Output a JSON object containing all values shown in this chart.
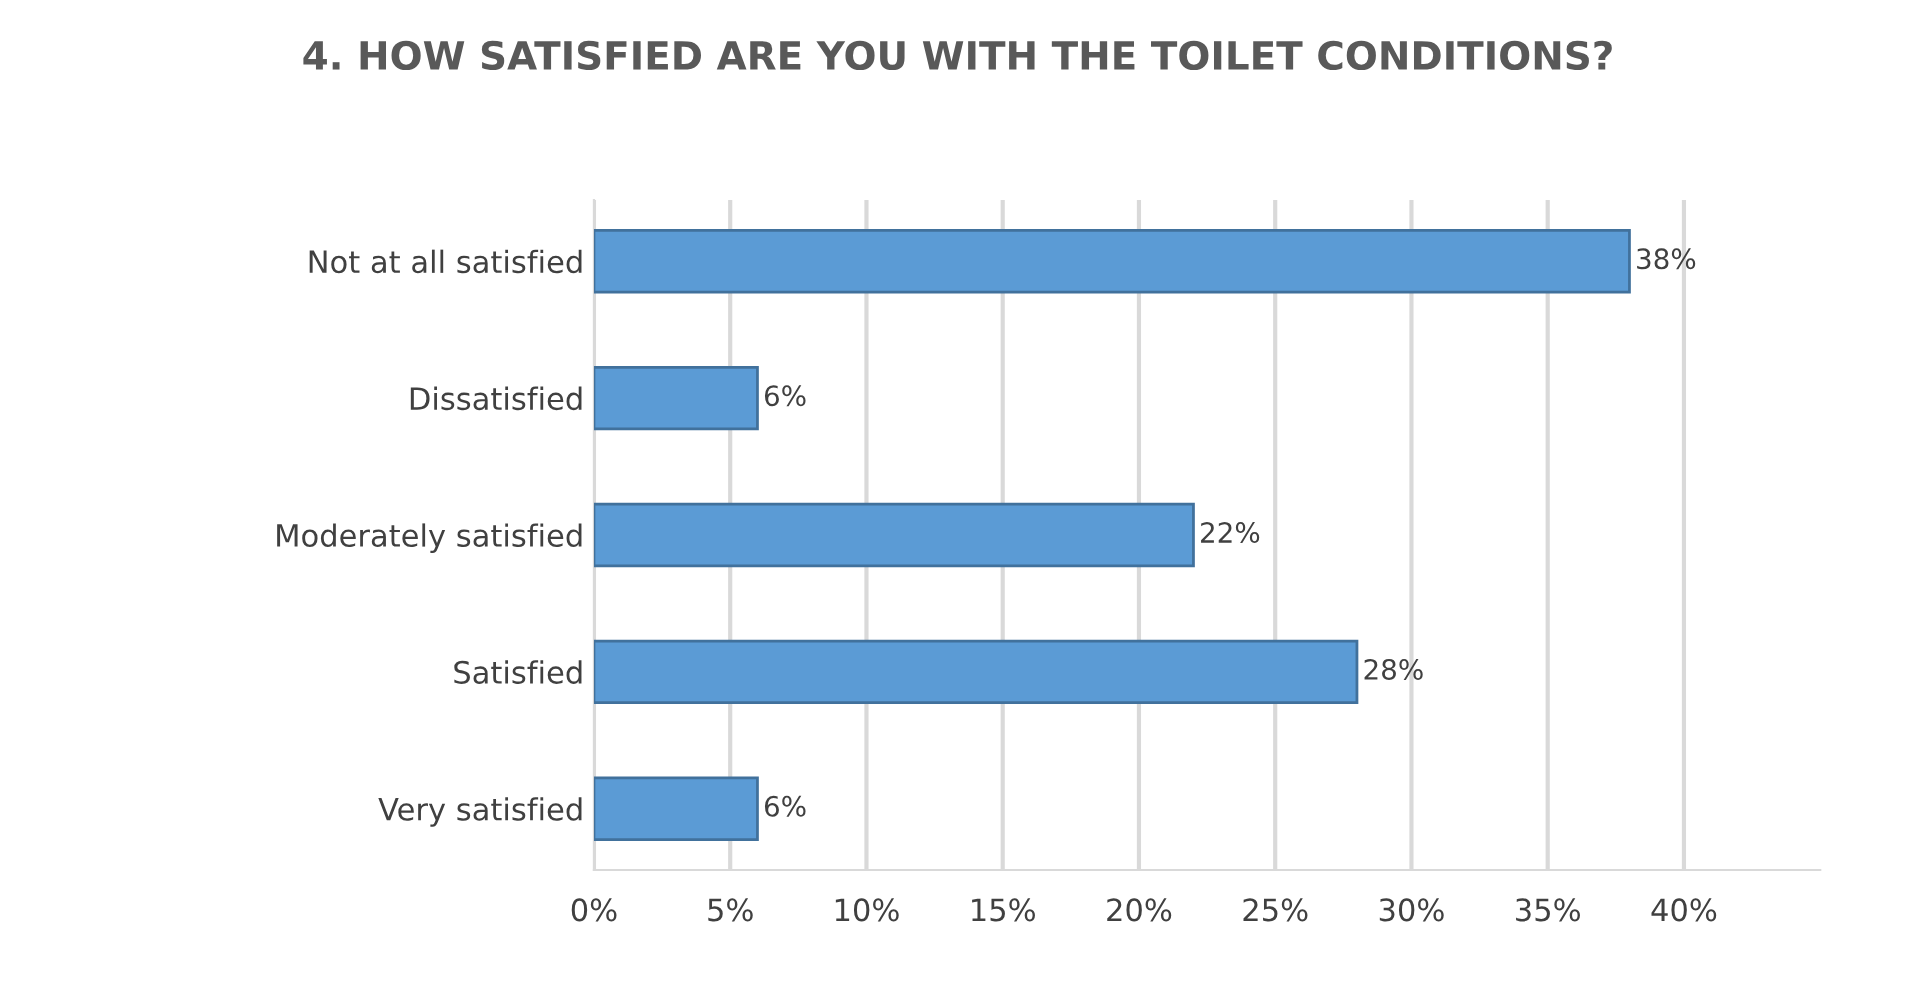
{
  "chart_data": {
    "type": "bar",
    "orientation": "horizontal",
    "title": "4. HOW SATISFIED ARE YOU WITH THE TOILET CONDITIONS?",
    "categories": [
      "Not at all satisfied",
      "Dissatisfied",
      "Moderately satisfied",
      "Satisfied",
      "Very satisfied"
    ],
    "values": [
      38,
      6,
      22,
      28,
      6
    ],
    "value_labels": [
      "38%",
      "6%",
      "22%",
      "28%",
      "6%"
    ],
    "color": "#5b9bd5",
    "xlim": [
      0,
      45
    ],
    "xticks": [
      {
        "value": 0,
        "label": "0%"
      },
      {
        "value": 5,
        "label": "5%"
      },
      {
        "value": 10,
        "label": "10%"
      },
      {
        "value": 15,
        "label": "15%"
      },
      {
        "value": 20,
        "label": "20%"
      },
      {
        "value": 25,
        "label": "25%"
      },
      {
        "value": 30,
        "label": "30%"
      },
      {
        "value": 35,
        "label": "35%"
      },
      {
        "value": 40,
        "label": "40%"
      }
    ],
    "grid": "x",
    "legend": false
  }
}
